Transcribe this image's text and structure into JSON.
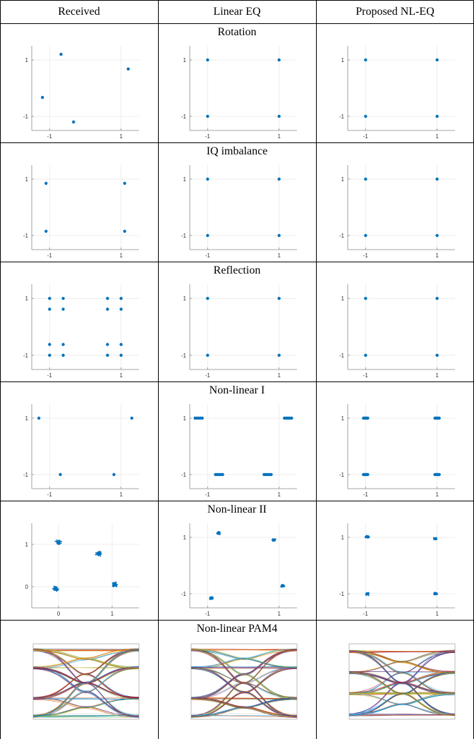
{
  "columns": [
    "Received",
    "Linear EQ",
    "Proposed NL-EQ"
  ],
  "colors": {
    "marker": "#0072BD",
    "axis": "#888888",
    "grid": "#e8e8e8",
    "border": "#000000"
  },
  "rows": [
    {
      "title": "Rotation",
      "panels": [
        {
          "xticks": [
            -1,
            1
          ],
          "yticks": [
            1,
            -1
          ],
          "points": [
            [
              -1.2,
              -0.33
            ],
            [
              -0.68,
              1.2
            ],
            [
              -0.33,
              -1.2
            ],
            [
              1.2,
              0.68
            ]
          ]
        },
        {
          "xticks": [
            -1,
            1
          ],
          "yticks": [
            1,
            -1
          ],
          "points": [
            [
              -1,
              1
            ],
            [
              1,
              1
            ],
            [
              -1,
              -1
            ],
            [
              1,
              -1
            ]
          ]
        },
        {
          "xticks": [
            -1,
            1
          ],
          "yticks": [
            1,
            -1
          ],
          "points": [
            [
              -1,
              1
            ],
            [
              1,
              1
            ],
            [
              -1,
              -1
            ],
            [
              1,
              -1
            ]
          ]
        }
      ]
    },
    {
      "title": "IQ imbalance",
      "panels": [
        {
          "xticks": [
            -1,
            1
          ],
          "yticks": [
            1,
            -1
          ],
          "points": [
            [
              -1.1,
              0.85
            ],
            [
              1.1,
              0.85
            ],
            [
              -1.1,
              -0.85
            ],
            [
              1.1,
              -0.85
            ]
          ]
        },
        {
          "xticks": [
            -1,
            1
          ],
          "yticks": [
            1,
            -1
          ],
          "points": [
            [
              -1,
              1
            ],
            [
              1,
              1
            ],
            [
              -1,
              -1
            ],
            [
              1,
              -1
            ]
          ]
        },
        {
          "xticks": [
            -1,
            1
          ],
          "yticks": [
            1,
            -1
          ],
          "points": [
            [
              -1,
              1
            ],
            [
              1,
              1
            ],
            [
              -1,
              -1
            ],
            [
              1,
              -1
            ]
          ]
        }
      ]
    },
    {
      "title": "Reflection",
      "panels": [
        {
          "xticks": [
            -1,
            1
          ],
          "yticks": [
            1,
            -1
          ],
          "points": [
            [
              -1,
              1
            ],
            [
              -0.62,
              1
            ],
            [
              0.62,
              1
            ],
            [
              1,
              1
            ],
            [
              -1,
              0.62
            ],
            [
              -0.62,
              0.62
            ],
            [
              0.62,
              0.62
            ],
            [
              1,
              0.62
            ],
            [
              -1,
              -0.62
            ],
            [
              -0.62,
              -0.62
            ],
            [
              0.62,
              -0.62
            ],
            [
              1,
              -0.62
            ],
            [
              -1,
              -1
            ],
            [
              -0.62,
              -1
            ],
            [
              0.62,
              -1
            ],
            [
              1,
              -1
            ]
          ]
        },
        {
          "xticks": [
            -1,
            1
          ],
          "yticks": [
            1,
            -1
          ],
          "points": [
            [
              -1,
              1
            ],
            [
              1,
              1
            ],
            [
              -1,
              -1
            ],
            [
              1,
              -1
            ]
          ]
        },
        {
          "xticks": [
            -1,
            1
          ],
          "yticks": [
            1,
            -1
          ],
          "points": [
            [
              -1,
              1
            ],
            [
              1,
              1
            ],
            [
              -1,
              -1
            ],
            [
              1,
              -1
            ]
          ]
        }
      ]
    },
    {
      "title": "Non-linear I",
      "panels": [
        {
          "xticks": [
            -1,
            1
          ],
          "yticks": [
            1,
            -1
          ],
          "points": [
            [
              -1.3,
              1
            ],
            [
              1.3,
              1
            ],
            [
              -0.7,
              -1
            ],
            [
              0.8,
              -1
            ]
          ]
        },
        {
          "xticks": [
            -1,
            1
          ],
          "yticks": [
            1,
            -1
          ],
          "points": [
            [
              -1.35,
              1
            ],
            [
              -1.3,
              1
            ],
            [
              -1.25,
              1
            ],
            [
              -1.2,
              1
            ],
            [
              -1.15,
              1
            ],
            [
              1.15,
              1
            ],
            [
              1.2,
              1
            ],
            [
              1.25,
              1
            ],
            [
              1.3,
              1
            ],
            [
              1.35,
              1
            ],
            [
              -0.78,
              -1
            ],
            [
              -0.73,
              -1
            ],
            [
              -0.68,
              -1
            ],
            [
              -0.63,
              -1
            ],
            [
              -0.58,
              -1
            ],
            [
              0.58,
              -1
            ],
            [
              0.63,
              -1
            ],
            [
              0.68,
              -1
            ],
            [
              0.73,
              -1
            ],
            [
              0.78,
              -1
            ]
          ]
        },
        {
          "xticks": [
            -1,
            1
          ],
          "yticks": [
            1,
            -1
          ],
          "points": [
            [
              -1.06,
              1
            ],
            [
              -1.03,
              1
            ],
            [
              -1,
              1
            ],
            [
              -0.97,
              1
            ],
            [
              -0.94,
              1
            ],
            [
              0.94,
              1
            ],
            [
              0.97,
              1
            ],
            [
              1,
              1
            ],
            [
              1.03,
              1
            ],
            [
              1.06,
              1
            ],
            [
              -1.06,
              -1
            ],
            [
              -1.03,
              -1
            ],
            [
              -1,
              -1
            ],
            [
              -0.97,
              -1
            ],
            [
              -0.94,
              -1
            ],
            [
              0.94,
              -1
            ],
            [
              0.97,
              -1
            ],
            [
              1,
              -1
            ],
            [
              1.03,
              -1
            ],
            [
              1.06,
              -1
            ]
          ]
        }
      ]
    },
    {
      "title": "Non-linear II",
      "panels": [
        {
          "xticks": [
            0,
            1
          ],
          "yticks": [
            1,
            0
          ],
          "xlim": [
            -0.5,
            1.5
          ],
          "ylim": [
            -0.5,
            1.5
          ],
          "clusters": [
            [
              0,
              1.05
            ],
            [
              0.75,
              0.78
            ],
            [
              1.05,
              0.05
            ],
            [
              -0.05,
              -0.05
            ]
          ]
        },
        {
          "xticks": [
            -1,
            1
          ],
          "yticks": [
            1,
            -1
          ],
          "clusters": [
            [
              -0.7,
              1.15
            ],
            [
              0.85,
              0.9
            ],
            [
              1.1,
              -0.72
            ],
            [
              -0.9,
              -1.15
            ]
          ]
        },
        {
          "xticks": [
            -1,
            1
          ],
          "yticks": [
            1,
            -1
          ],
          "clusters": [
            [
              -0.95,
              1.02
            ],
            [
              0.95,
              0.95
            ],
            [
              0.95,
              -1.0
            ],
            [
              -0.95,
              -1.0
            ]
          ]
        }
      ]
    },
    {
      "title": "Non-linear PAM4",
      "panels": [
        {
          "variant": "received"
        },
        {
          "variant": "linear"
        },
        {
          "variant": "proposed"
        }
      ]
    }
  ]
}
